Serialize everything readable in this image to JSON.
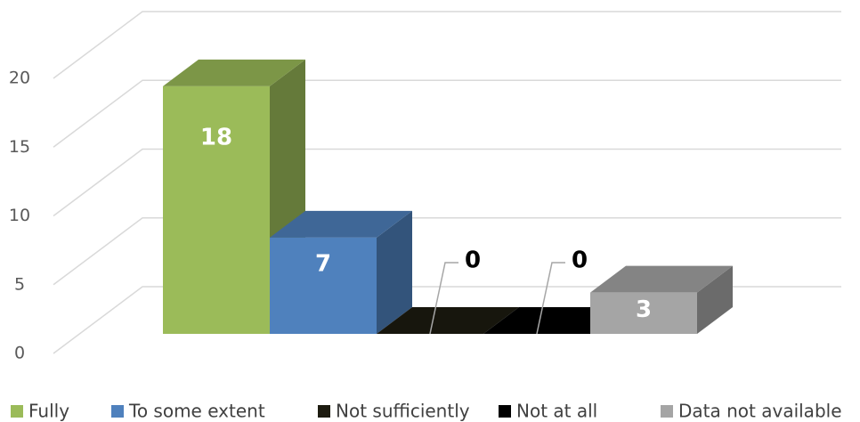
{
  "chart_data": {
    "type": "bar3d",
    "series": [
      {
        "name": "Fully",
        "color": "#9bbb59",
        "values": [
          18
        ]
      },
      {
        "name": "To some extent",
        "color": "#4f81bd",
        "values": [
          7
        ]
      },
      {
        "name": "Not sufficiently",
        "color": "#1d1b10",
        "values": [
          0
        ]
      },
      {
        "name": "Not at all",
        "color": "#000000",
        "values": [
          0
        ]
      },
      {
        "name": "Data not available",
        "color": "#a5a5a5",
        "values": [
          3
        ]
      }
    ],
    "ylim": [
      0,
      20
    ],
    "yticks": [
      0,
      5,
      10,
      15,
      20
    ],
    "grid": true,
    "legend": "bottom"
  }
}
